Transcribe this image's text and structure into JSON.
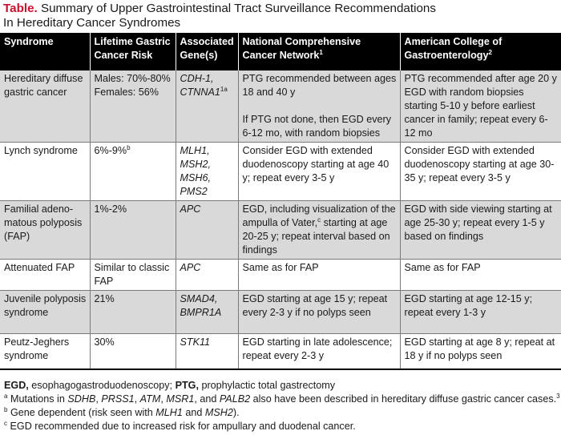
{
  "caption": {
    "label": "Table.",
    "title_line1": " Summary of Upper Gastrointestinal Tract Surveillance Recommendations",
    "title_line2": "In Hereditary Cancer Syndromes"
  },
  "headers": {
    "syndrome": "Syndrome",
    "risk": "Lifetime Gastric Cancer Risk",
    "genes": "Associated Gene(s)",
    "nccn": "National Comprehensive Cancer Network",
    "nccn_sup": "1",
    "acg": "American College of Gastroenterology",
    "acg_sup": "2"
  },
  "rows": [
    {
      "syndrome": "Hereditary diffuse gastric cancer",
      "risk": [
        "Males: 70%-80%",
        "Females: 56%"
      ],
      "genes": [
        "CDH-1,",
        "CTNNA1"
      ],
      "gene_sup": "1a",
      "nccn_p1": "PTG recommended between ages 18 and 40 y",
      "nccn_p2": "If PTG not done, then EGD every 6-12 mo, with random biopsies",
      "acg": "PTG recommended after age 20 y EGD with random biopsies starting 5-10 y before earliest cancer in family; repeat every 6-12 mo"
    },
    {
      "syndrome": "Lynch syndrome",
      "risk": "6%-9%",
      "risk_sup": "b",
      "genes": [
        "MLH1,",
        "MSH2,",
        "MSH6,",
        "PMS2"
      ],
      "nccn": "Consider EGD with extended duodenoscopy starting at age 40 y; repeat every 3-5 y",
      "acg": "Consider EGD with extended duodenoscopy starting at age 30-35 y; repeat every 3-5 y"
    },
    {
      "syndrome": "Familial adeno-matous polyposis (FAP)",
      "risk": "1%-2%",
      "genes": "APC",
      "nccn_a": "EGD, including visualization of the ampulla of Vater,",
      "nccn_sup": "c",
      "nccn_b": " starting at age 20-25 y; repeat interval based on findings",
      "acg": "EGD with side viewing starting at age 25-30 y; repeat every 1-5 y based on findings"
    },
    {
      "syndrome": "Attenuated FAP",
      "risk": "Similar to classic FAP",
      "genes": "APC",
      "nccn": "Same as for FAP",
      "acg": "Same as for FAP"
    },
    {
      "syndrome": "Juvenile polyposis syndrome",
      "risk": "21%",
      "genes": [
        "SMAD4,",
        "BMPR1A"
      ],
      "nccn": "EGD starting at age 15 y; repeat every 2-3 y if no polyps seen",
      "acg": "EGD starting at age 12-15 y; repeat every 1-3 y"
    },
    {
      "syndrome": "Peutz-Jeghers syndrome",
      "risk": "30%",
      "genes": "STK11",
      "nccn": "EGD starting in late adolescence; repeat every 2-3 y",
      "acg": "EGD starting at age 8 y; repeat at 18 y if no polyps seen"
    }
  ],
  "footnotes": {
    "abbr": {
      "egd_term": "EGD,",
      "egd_def": " esophagogastroduodenoscopy; ",
      "ptg_term": "PTG,",
      "ptg_def": " prophylactic total gastrectomy"
    },
    "a": {
      "mark": "a",
      "t1": " Mutations in ",
      "g1": "SDHB",
      "t2": ", ",
      "g2": "PRSS1",
      "t3": ", ",
      "g3": "ATM",
      "t4": ", ",
      "g4": "MSR1",
      "t5": ", and ",
      "g5": "PALB2",
      "t6": " also have been described in hereditary diffuse gastric cancer cases.",
      "ref": "3"
    },
    "b": {
      "mark": "b",
      "t1": " Gene dependent (risk seen with ",
      "g1": "MLH1",
      "t2": " and ",
      "g2": "MSH2",
      "t3": ")."
    },
    "c": {
      "mark": "c",
      "t1": " EGD recommended due to increased risk for ampullary and duodenal cancer."
    }
  }
}
